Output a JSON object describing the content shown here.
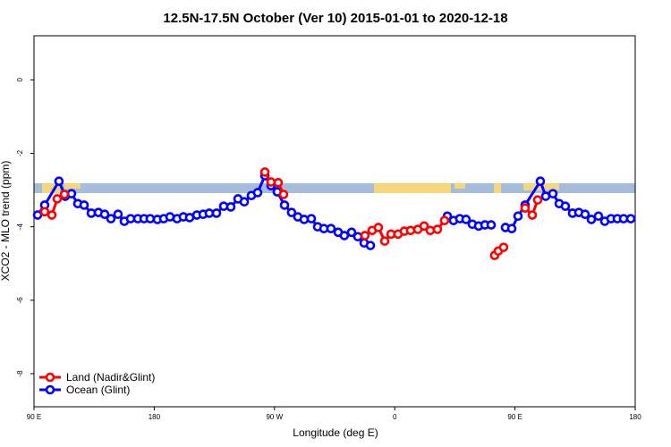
{
  "chart_data": {
    "type": "line",
    "title": "12.5N-17.5N October (Ver 10)   2015-01-01 to 2020-12-18",
    "x_label": "Longitude (deg E)",
    "y_label": "XCO2 - MLO trend (ppm)",
    "xlim": [
      90,
      540
    ],
    "ylim": [
      -8.9,
      1.2
    ],
    "xticks": [
      {
        "value": 90,
        "label": "90 E"
      },
      180,
      {
        "value": 270,
        "label": "90 W"
      },
      {
        "value": 360,
        "label": "0"
      },
      {
        "value": 450,
        "label": "90 E"
      },
      {
        "value": 540,
        "label": "180"
      }
    ],
    "yticks": [
      0,
      -2,
      -4,
      -6,
      -8
    ],
    "legend": "bottom-left",
    "series": [
      {
        "name": "Land (Nadir&Glint)",
        "color": "#ff0000",
        "x": [
          98.0,
          103.4,
          107.4,
          112.8,
          200,
          262.8,
          267.4,
          272.8,
          276.8,
          300,
          337.7,
          343.1,
          347.8,
          352.5,
          357.2,
          362.5,
          367.2,
          371.9,
          377.3,
          382.0,
          386.6,
          392.0,
          397.3,
          420,
          434.8,
          437.5,
          441.5,
          450,
          457.6,
          463.0,
          467.0
        ],
        "values": [
          -3.59,
          -3.68,
          -3.24,
          -3.12,
          null,
          -2.51,
          -2.78,
          -2.8,
          -3.12,
          null,
          -4.24,
          -4.1,
          -4.02,
          -4.39,
          -4.2,
          -4.2,
          -4.12,
          -4.1,
          -4.07,
          -3.98,
          -4.1,
          -4.07,
          -3.83,
          null,
          -4.78,
          -4.66,
          -4.56,
          null,
          -3.49,
          -3.68,
          -3.27
        ]
      },
      {
        "name": "Ocean (Glint)",
        "color": "#0000ff",
        "x": [
          92.7,
          98.0,
          108.7,
          113.4,
          118.1,
          122.8,
          127.5,
          132.9,
          138.2,
          142.9,
          147.6,
          152.9,
          157.6,
          162.3,
          167.7,
          172.4,
          177.0,
          182.4,
          187.1,
          191.8,
          197.1,
          201.8,
          206.5,
          211.9,
          216.6,
          221.2,
          226.6,
          232.0,
          237.3,
          242.7,
          247.4,
          252.7,
          257.4,
          262.8,
          267.4,
          272.1,
          277.5,
          282.8,
          287.5,
          292.2,
          297.6,
          302.3,
          307.0,
          312.3,
          317.7,
          322.3,
          327.7,
          332.4,
          337.1,
          341.8,
          370,
          399.4,
          404.0,
          408.7,
          413.4,
          418.1,
          422.8,
          427.5,
          432.2,
          437,
          442.9,
          447.6,
          452.3,
          457.6,
          469.0,
          473.0,
          478.4,
          483.1,
          487.7,
          493.1,
          497.8,
          502.5,
          507.2,
          512.5,
          517.2,
          521.9,
          526.6,
          531.3,
          536.7
        ],
        "values": [
          -3.68,
          -3.41,
          -2.76,
          -3.17,
          -3.1,
          -3.37,
          -3.41,
          -3.63,
          -3.61,
          -3.66,
          -3.78,
          -3.66,
          -3.85,
          -3.78,
          -3.78,
          -3.78,
          -3.78,
          -3.8,
          -3.78,
          -3.73,
          -3.78,
          -3.73,
          -3.75,
          -3.68,
          -3.66,
          -3.63,
          -3.63,
          -3.44,
          -3.46,
          -3.24,
          -3.32,
          -3.15,
          -3.07,
          -2.61,
          -2.88,
          -3.05,
          -3.41,
          -3.61,
          -3.73,
          -3.8,
          -3.78,
          -4.0,
          -4.05,
          -4.05,
          -4.15,
          -4.24,
          -4.15,
          -4.27,
          -4.44,
          -4.51,
          null,
          -3.71,
          -3.83,
          -3.78,
          -3.8,
          -3.93,
          -3.98,
          -3.95,
          -3.95,
          null,
          -4.02,
          -4.05,
          -3.71,
          -3.41,
          -2.76,
          -3.17,
          -3.1,
          -3.37,
          -3.44,
          -3.63,
          -3.61,
          -3.66,
          -3.8,
          -3.71,
          -3.85,
          -3.78,
          -3.78,
          -3.78,
          -3.78
        ]
      }
    ]
  }
}
